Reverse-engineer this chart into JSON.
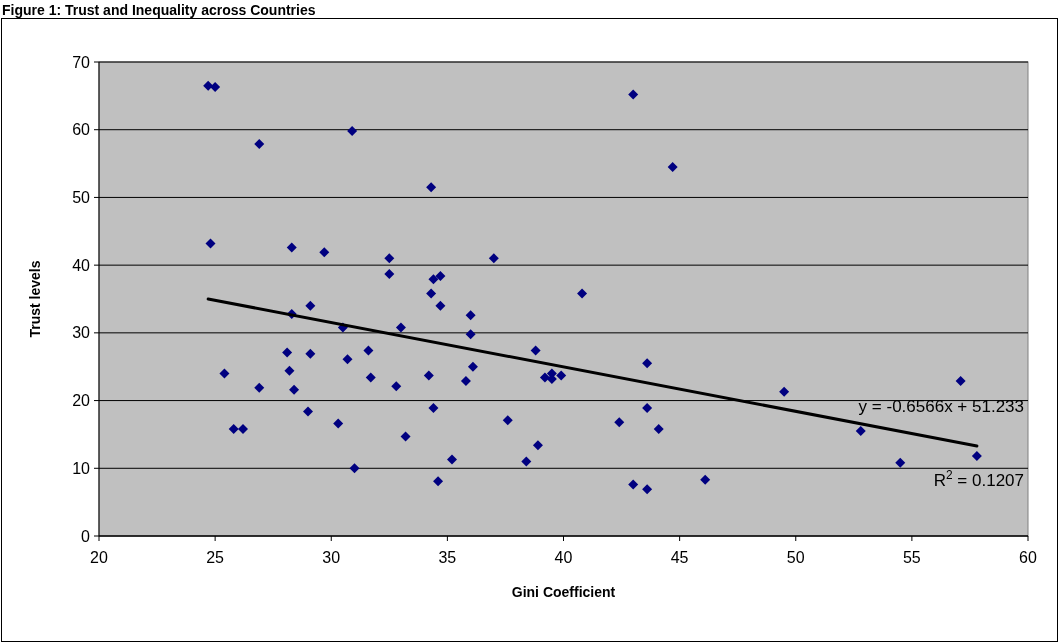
{
  "chart_data": {
    "type": "scatter",
    "title": "Figure 1: Trust and Inequality across Countries",
    "xlabel": "Gini Coefficient",
    "ylabel": "Trust levels",
    "xlim": [
      20,
      60
    ],
    "xticks": [
      20,
      25,
      30,
      35,
      40,
      45,
      50,
      55,
      60
    ],
    "ylim": [
      0,
      70
    ],
    "yticks": [
      0,
      10,
      20,
      30,
      40,
      50,
      60,
      70
    ],
    "grid": "y",
    "annotations": [
      "y = -0.6566x + 51.233",
      "R$^{2}$ = 0.1207"
    ],
    "series": [
      {
        "marker": "diamond",
        "color": "#000080",
        "x": [
          24.7,
          25.0,
          26.9,
          30.9,
          34.3,
          43.0,
          44.7,
          24.8,
          28.3,
          29.7,
          32.5,
          37.0,
          32.5,
          34.4,
          34.7,
          34.3,
          40.8,
          34.7,
          29.1,
          28.3,
          36.0,
          30.5,
          33.0,
          36.0,
          28.1,
          29.1,
          30.7,
          31.6,
          38.8,
          43.6,
          36.1,
          25.4,
          28.2,
          26.9,
          28.4,
          31.7,
          32.8,
          34.2,
          35.8,
          39.2,
          39.5,
          39.5,
          39.9,
          49.5,
          57.1,
          25.8,
          26.2,
          29.0,
          30.3,
          34.4,
          37.6,
          42.4,
          43.6,
          44.1,
          52.8,
          33.2,
          35.2,
          38.4,
          38.9,
          31.0,
          34.6,
          43.0,
          43.6,
          46.1,
          54.5,
          57.8
        ],
        "values": [
          66.5,
          66.3,
          57.9,
          59.8,
          51.5,
          65.2,
          54.5,
          43.2,
          42.6,
          41.9,
          41.0,
          41.0,
          38.7,
          37.9,
          38.4,
          35.8,
          35.8,
          34.0,
          34.0,
          32.8,
          32.6,
          30.8,
          30.8,
          29.8,
          27.1,
          26.9,
          26.1,
          27.4,
          27.4,
          25.5,
          25.0,
          24.0,
          24.4,
          21.9,
          21.6,
          23.4,
          22.1,
          23.7,
          22.9,
          23.4,
          24.0,
          23.2,
          23.7,
          21.3,
          22.9,
          15.8,
          15.8,
          18.4,
          16.6,
          18.9,
          17.1,
          16.8,
          18.9,
          15.8,
          15.5,
          14.7,
          11.3,
          11.0,
          13.4,
          10.0,
          8.1,
          7.6,
          6.9,
          8.3,
          10.8,
          11.8
        ]
      },
      {
        "type": "line",
        "color": "#000000",
        "x": [
          24.7,
          57.8
        ],
        "values": [
          35.0,
          13.3
        ]
      }
    ]
  }
}
